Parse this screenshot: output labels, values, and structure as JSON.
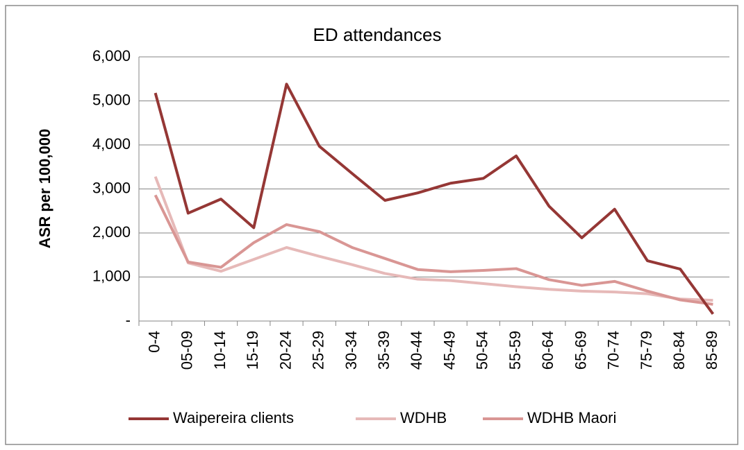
{
  "chart_data": {
    "type": "line",
    "title": "ED attendances",
    "y_label": "ASR per 100,000",
    "categories": [
      "0-4",
      "05-09",
      "10-14",
      "15-19",
      "20-24",
      "25-29",
      "30-34",
      "35-39",
      "40-44",
      "45-49",
      "50-54",
      "55-59",
      "60-64",
      "65-69",
      "70-74",
      "75-79",
      "80-84",
      "85-89"
    ],
    "series": [
      {
        "name": "Waipereira clients",
        "color": "#953735",
        "values": [
          5180,
          2450,
          2770,
          2120,
          5380,
          3970,
          3350,
          2740,
          2910,
          3130,
          3240,
          3750,
          2610,
          1890,
          2540,
          1370,
          1180,
          160
        ]
      },
      {
        "name": "WDHB",
        "color": "#e6b9b8",
        "values": [
          3280,
          1320,
          1130,
          1400,
          1670,
          1470,
          1280,
          1080,
          950,
          920,
          850,
          780,
          720,
          680,
          660,
          620,
          500,
          470
        ]
      },
      {
        "name": "WDHB Maori",
        "color": "#d99694",
        "values": [
          2860,
          1340,
          1220,
          1780,
          2190,
          2030,
          1670,
          1420,
          1170,
          1120,
          1150,
          1190,
          940,
          810,
          900,
          680,
          480,
          380
        ]
      }
    ],
    "ylim": [
      0,
      6000
    ],
    "yticks": [
      {
        "value": 0,
        "label": "-"
      },
      {
        "value": 1000,
        "label": "1,000"
      },
      {
        "value": 2000,
        "label": "2,000"
      },
      {
        "value": 3000,
        "label": "3,000"
      },
      {
        "value": 4000,
        "label": "4,000"
      },
      {
        "value": 5000,
        "label": "5,000"
      },
      {
        "value": 6000,
        "label": "6,000"
      }
    ],
    "grid": true,
    "legend": "bottom"
  }
}
